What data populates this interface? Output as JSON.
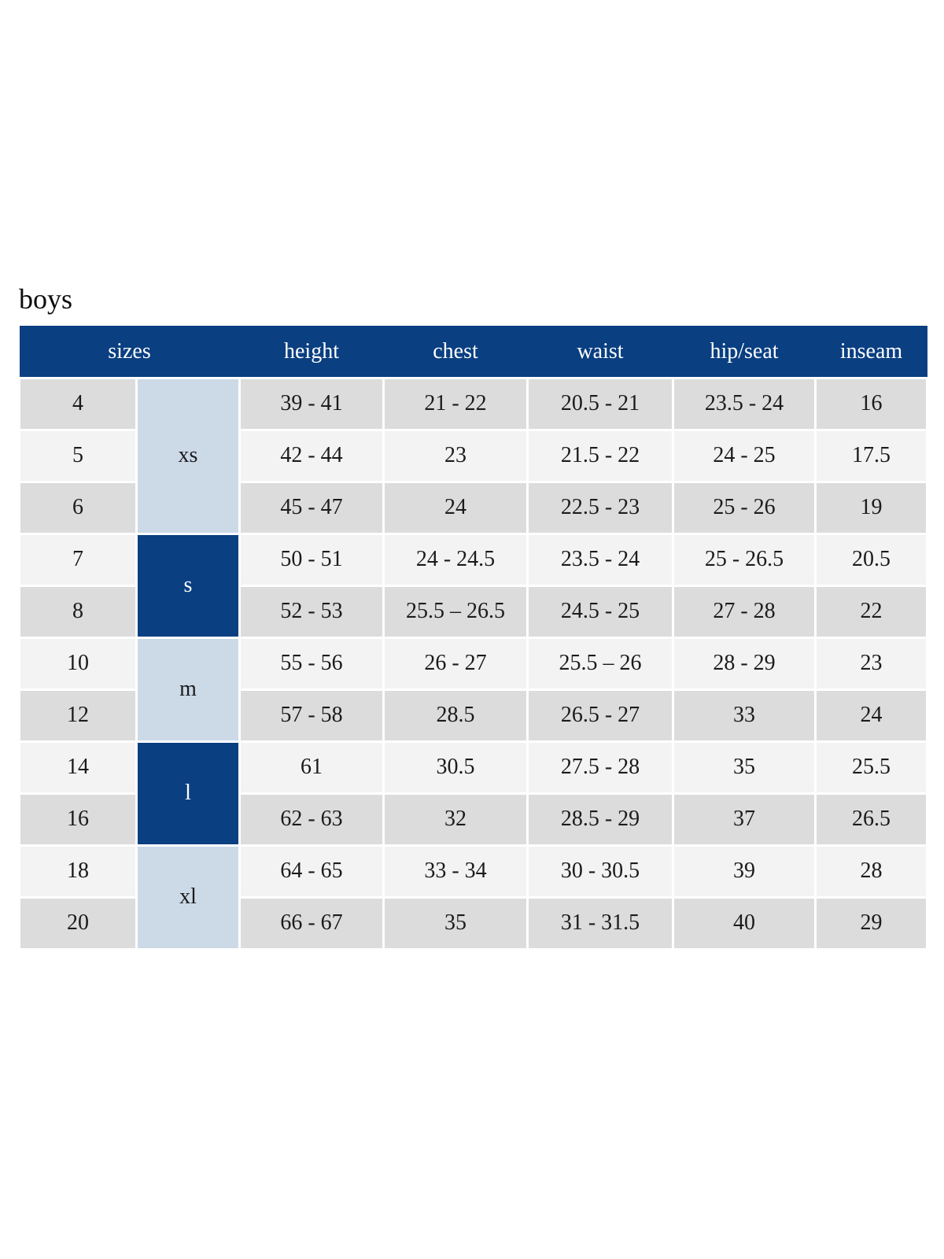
{
  "page": {
    "title": "boys"
  },
  "colors": {
    "header_navy": "#0a3f81",
    "group_light_blue": "#ccd9e7",
    "row_dark": "#dcdcdc",
    "row_light": "#f3f3f3",
    "header_text": "#ffffff",
    "cell_text": "#1b1b1b"
  },
  "table": {
    "headers": [
      "sizes",
      "height",
      "chest",
      "waist",
      "hip/seat",
      "inseam"
    ],
    "rows": [
      {
        "size": "4",
        "group": {
          "label": "xs",
          "span": 3,
          "variant": "lightblue"
        },
        "height": "39 - 41",
        "chest": "21 - 22",
        "waist": "20.5 - 21",
        "hip_seat": "23.5 - 24",
        "inseam": "16"
      },
      {
        "size": "5",
        "height": "42 - 44",
        "chest": "23",
        "waist": "21.5 - 22",
        "hip_seat": "24 - 25",
        "inseam": "17.5"
      },
      {
        "size": "6",
        "height": "45 - 47",
        "chest": "24",
        "waist": "22.5 - 23",
        "hip_seat": "25 - 26",
        "inseam": "19"
      },
      {
        "size": "7",
        "group": {
          "label": "s",
          "span": 2,
          "variant": "navy"
        },
        "height": "50 - 51",
        "chest": "24 - 24.5",
        "waist": "23.5 - 24",
        "hip_seat": "25 - 26.5",
        "inseam": "20.5"
      },
      {
        "size": "8",
        "height": "52 - 53",
        "chest": "25.5 – 26.5",
        "waist": "24.5 - 25",
        "hip_seat": "27 - 28",
        "inseam": "22"
      },
      {
        "size": "10",
        "group": {
          "label": "m",
          "span": 2,
          "variant": "lightblue"
        },
        "height": "55 - 56",
        "chest": "26 - 27",
        "waist": "25.5 – 26",
        "hip_seat": "28 - 29",
        "inseam": "23"
      },
      {
        "size": "12",
        "height": "57 - 58",
        "chest": "28.5",
        "waist": "26.5 - 27",
        "hip_seat": "33",
        "inseam": "24"
      },
      {
        "size": "14",
        "group": {
          "label": "l",
          "span": 2,
          "variant": "navy"
        },
        "height": "61",
        "chest": "30.5",
        "waist": "27.5 - 28",
        "hip_seat": "35",
        "inseam": "25.5"
      },
      {
        "size": "16",
        "height": "62 - 63",
        "chest": "32",
        "waist": "28.5 - 29",
        "hip_seat": "37",
        "inseam": "26.5"
      },
      {
        "size": "18",
        "group": {
          "label": "xl",
          "span": 2,
          "variant": "lightblue"
        },
        "height": "64 - 65",
        "chest": "33 - 34",
        "waist": "30 - 30.5",
        "hip_seat": "39",
        "inseam": "28"
      },
      {
        "size": "20",
        "height": "66 - 67",
        "chest": "35",
        "waist": "31 - 31.5",
        "hip_seat": "40",
        "inseam": "29"
      }
    ]
  }
}
